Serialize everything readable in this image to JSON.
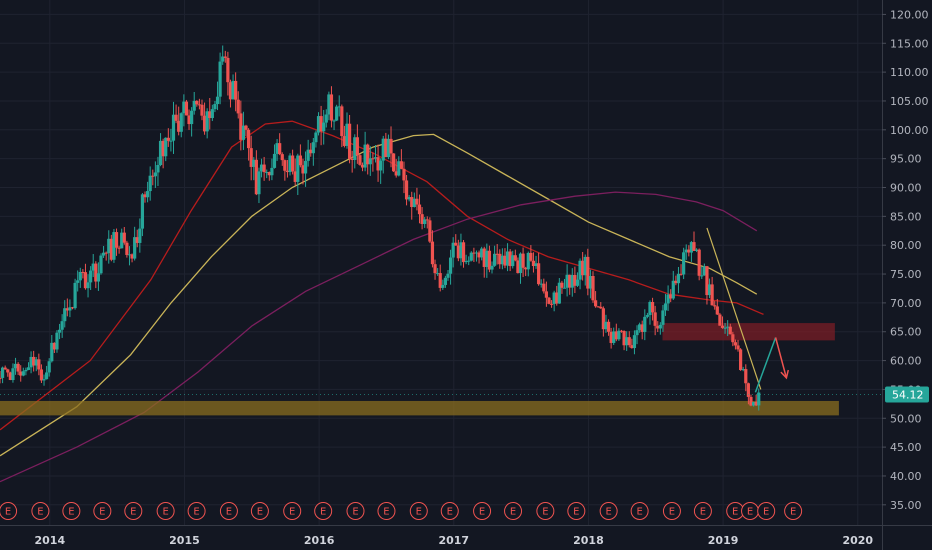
{
  "chart_data": {
    "type": "candlestick",
    "y_axis": {
      "ticks": [
        "120.00",
        "115.00",
        "110.00",
        "105.00",
        "100.00",
        "95.00",
        "90.00",
        "85.00",
        "80.00",
        "75.00",
        "70.00",
        "65.00",
        "60.00",
        "55.00",
        "50.00",
        "45.00",
        "40.00",
        "35.00"
      ],
      "ylim": [
        31.5,
        122.5
      ],
      "position": "right"
    },
    "x_axis": {
      "ticks": [
        "2014",
        "2015",
        "2016",
        "2017",
        "2018",
        "2019",
        "2020"
      ],
      "range": [
        2013.63,
        2020.18
      ]
    },
    "grid": true,
    "last_price": {
      "value": 54.12,
      "label": "54.12",
      "color": "#26a69a"
    },
    "anchors": [
      [
        2013.63,
        57
      ],
      [
        2013.9,
        60
      ],
      [
        2013.98,
        57
      ],
      [
        2014.05,
        63
      ],
      [
        2014.15,
        69
      ],
      [
        2014.22,
        73
      ],
      [
        2014.35,
        75
      ],
      [
        2014.48,
        80
      ],
      [
        2014.65,
        80
      ],
      [
        2014.75,
        92
      ],
      [
        2014.92,
        100
      ],
      [
        2015.05,
        104
      ],
      [
        2015.18,
        102
      ],
      [
        2015.32,
        112
      ],
      [
        2015.4,
        104
      ],
      [
        2015.55,
        91
      ],
      [
        2015.7,
        96
      ],
      [
        2015.83,
        92
      ],
      [
        2015.95,
        95
      ],
      [
        2016.05,
        103
      ],
      [
        2016.15,
        104
      ],
      [
        2016.25,
        97
      ],
      [
        2016.4,
        95
      ],
      [
        2016.55,
        96
      ],
      [
        2016.65,
        91
      ],
      [
        2016.82,
        83
      ],
      [
        2016.92,
        73
      ],
      [
        2017.02,
        79
      ],
      [
        2017.15,
        77
      ],
      [
        2017.3,
        78
      ],
      [
        2017.45,
        77
      ],
      [
        2017.6,
        78
      ],
      [
        2017.72,
        70
      ],
      [
        2017.82,
        73
      ],
      [
        2018.0,
        76
      ],
      [
        2018.05,
        71
      ],
      [
        2018.15,
        65
      ],
      [
        2018.25,
        64
      ],
      [
        2018.35,
        62
      ],
      [
        2018.45,
        69
      ],
      [
        2018.55,
        66
      ],
      [
        2018.65,
        73
      ],
      [
        2018.75,
        79
      ],
      [
        2018.82,
        78
      ],
      [
        2018.9,
        73
      ],
      [
        2018.95,
        68
      ],
      [
        2019.02,
        65
      ],
      [
        2019.1,
        64
      ],
      [
        2019.15,
        59
      ],
      [
        2019.2,
        54
      ],
      [
        2019.24,
        53
      ],
      [
        2019.28,
        54
      ]
    ],
    "moving_averages": [
      {
        "color": "#b71c1c",
        "points": [
          [
            2013.63,
            48
          ],
          [
            2014.3,
            60
          ],
          [
            2014.75,
            74
          ],
          [
            2015.05,
            86
          ],
          [
            2015.35,
            97
          ],
          [
            2015.6,
            101
          ],
          [
            2015.8,
            101.5
          ],
          [
            2016.1,
            99
          ],
          [
            2016.4,
            96
          ],
          [
            2016.8,
            91
          ],
          [
            2017.1,
            85
          ],
          [
            2017.4,
            81
          ],
          [
            2017.7,
            78
          ],
          [
            2018.0,
            76
          ],
          [
            2018.3,
            74
          ],
          [
            2018.6,
            71.5
          ],
          [
            2018.9,
            70.5
          ],
          [
            2019.1,
            70
          ],
          [
            2019.3,
            68
          ]
        ]
      },
      {
        "color": "#c9b458",
        "points": [
          [
            2013.63,
            43.5
          ],
          [
            2014.2,
            52
          ],
          [
            2014.6,
            61
          ],
          [
            2014.9,
            70
          ],
          [
            2015.2,
            78
          ],
          [
            2015.5,
            85
          ],
          [
            2015.8,
            90
          ],
          [
            2016.1,
            93.5
          ],
          [
            2016.4,
            97
          ],
          [
            2016.7,
            99
          ],
          [
            2016.85,
            99.2
          ],
          [
            2017.1,
            96
          ],
          [
            2017.4,
            92
          ],
          [
            2017.7,
            88
          ],
          [
            2018.0,
            84
          ],
          [
            2018.3,
            81
          ],
          [
            2018.6,
            78
          ],
          [
            2018.9,
            76
          ],
          [
            2019.1,
            73.5
          ],
          [
            2019.25,
            71.5
          ]
        ]
      },
      {
        "color": "#7b1f5e",
        "points": [
          [
            2013.63,
            39
          ],
          [
            2014.2,
            45
          ],
          [
            2014.7,
            51
          ],
          [
            2015.1,
            58
          ],
          [
            2015.5,
            66
          ],
          [
            2015.9,
            72
          ],
          [
            2016.3,
            76.5
          ],
          [
            2016.7,
            81
          ],
          [
            2017.1,
            84.5
          ],
          [
            2017.5,
            87
          ],
          [
            2017.9,
            88.5
          ],
          [
            2018.2,
            89.2
          ],
          [
            2018.5,
            88.8
          ],
          [
            2018.8,
            87.5
          ],
          [
            2019.0,
            86
          ],
          [
            2019.25,
            82.5
          ]
        ]
      }
    ],
    "zones": [
      {
        "color": "#8a6d1f",
        "x": [
          2013.63,
          2019.86
        ],
        "y": [
          50.5,
          53
        ]
      },
      {
        "color": "#7a1e26",
        "x": [
          2018.55,
          2019.83
        ],
        "y": [
          63.5,
          66.5
        ]
      }
    ],
    "trendline": {
      "color": "#c9b458",
      "points": [
        [
          2018.88,
          83
        ],
        [
          2019.28,
          55
        ]
      ]
    },
    "projection_up": {
      "color": "#26a69a",
      "points": [
        [
          2019.24,
          54.5
        ],
        [
          2019.39,
          64
        ]
      ]
    },
    "projection_down": {
      "color": "#ef5350",
      "points": [
        [
          2019.39,
          64
        ],
        [
          2019.47,
          57
        ]
      ]
    },
    "earnings": {
      "label": "E",
      "color": "#ef5350",
      "x": [
        2013.69,
        2013.93,
        2014.16,
        2014.39,
        2014.62,
        2014.86,
        2015.09,
        2015.33,
        2015.56,
        2015.8,
        2016.03,
        2016.27,
        2016.5,
        2016.74,
        2016.97,
        2017.21,
        2017.44,
        2017.68,
        2017.91,
        2018.15,
        2018.38,
        2018.62,
        2018.85,
        2019.09,
        2019.2,
        2019.32,
        2019.52
      ]
    }
  }
}
